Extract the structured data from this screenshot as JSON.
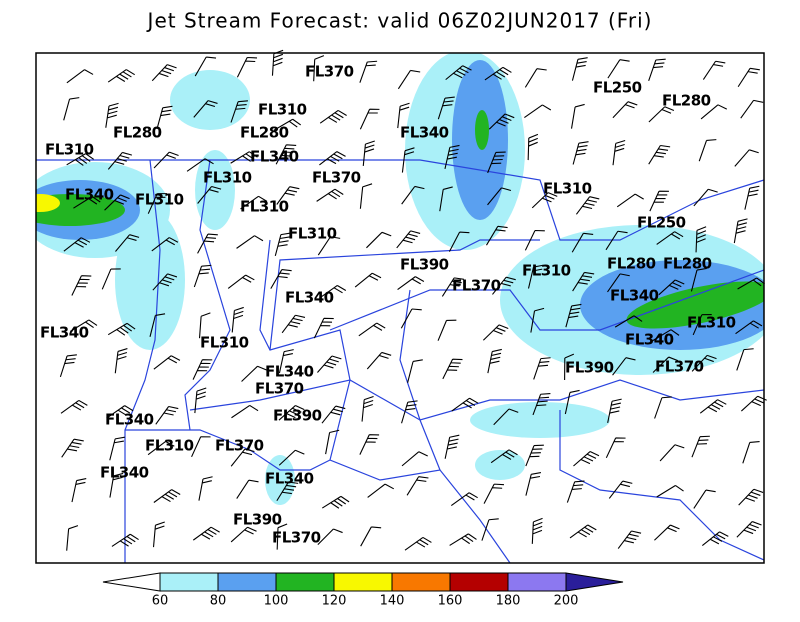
{
  "title": "Jet Stream Forecast:  valid 06Z02JUN2017 (Fri)",
  "flight_levels": [
    "FL370",
    "FL310",
    "FL280",
    "FL280",
    "FL340",
    "FL310",
    "FL340",
    "FL310",
    "FL370",
    "FL340",
    "FL310",
    "FL310",
    "FL310",
    "FL250",
    "FL280",
    "FL310",
    "FL250",
    "FL390",
    "FL310",
    "FL370",
    "FL280",
    "FL280",
    "FL340",
    "FL340",
    "FL310",
    "FL340",
    "FL310",
    "FL340",
    "FL390",
    "FL370",
    "FL340",
    "FL370",
    "FL390",
    "FL340",
    "FL310",
    "FL370",
    "FL340",
    "FL340",
    "FL390",
    "FL370"
  ],
  "colorbar": {
    "ticks": [
      60,
      80,
      100,
      120,
      140,
      160,
      180,
      200
    ],
    "colors": [
      "#ffffff",
      "#aaf0f8",
      "#5aa0f0",
      "#22b422",
      "#f8f800",
      "#f87800",
      "#b40000",
      "#8c78f0",
      "#2a1e9a"
    ]
  }
}
